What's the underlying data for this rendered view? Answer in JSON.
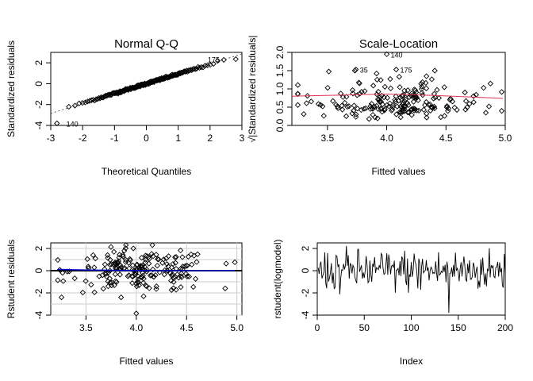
{
  "chart_data": [
    {
      "type": "scatter",
      "id": "qq",
      "title": "Normal Q-Q",
      "xlabel": "Theoretical Quantiles",
      "ylabel": "Standardized residuals",
      "xlim": [
        -3,
        3
      ],
      "ylim": [
        -4,
        3
      ],
      "xticks": [
        "-3",
        "-2",
        "-1",
        "0",
        "1",
        "2",
        "3"
      ],
      "yticks": [
        "-4",
        "-2",
        "0",
        "2"
      ],
      "n_points": 200,
      "reference_line": {
        "intercept": 0,
        "slope": 0.95,
        "style": "dotted",
        "color": "#555555"
      },
      "labeled_points": [
        {
          "label": "140",
          "x": -2.81,
          "y": -3.8
        },
        {
          "label": "175",
          "x": 2.6,
          "y": 2.35
        }
      ]
    },
    {
      "type": "scatter",
      "id": "scale_location",
      "title": "Scale-Location",
      "xlabel": "Fitted values",
      "ylabel": "√|Standardized residuals|",
      "xlim": [
        3.2,
        5.0
      ],
      "ylim": [
        0.0,
        2.0
      ],
      "xticks": [
        "3.5",
        "4.0",
        "4.5",
        "5.0"
      ],
      "yticks": [
        "0.0",
        "0.5",
        "1.0",
        "1.5",
        "2.0"
      ],
      "smoother_color": "#dd3355",
      "smoother": [
        [
          3.2,
          0.8
        ],
        [
          3.6,
          0.83
        ],
        [
          4.0,
          0.86
        ],
        [
          4.4,
          0.82
        ],
        [
          4.7,
          0.78
        ],
        [
          4.98,
          0.74
        ]
      ],
      "labeled_points": [
        {
          "label": "140",
          "x": 4.0,
          "y": 1.95
        },
        {
          "label": "35",
          "x": 3.74,
          "y": 1.53
        },
        {
          "label": "175",
          "x": 4.08,
          "y": 1.53
        }
      ]
    },
    {
      "type": "scatter",
      "id": "rstudent_fitted",
      "title": "",
      "xlabel": "Fitted values",
      "ylabel": "Rstudent residuals",
      "xlim": [
        3.15,
        5.05
      ],
      "ylim": [
        -4,
        2.5
      ],
      "xticks": [
        "3.5",
        "4.0",
        "4.5",
        "5.0"
      ],
      "yticks": [
        "-4",
        "-2",
        "0",
        "2"
      ],
      "grid": true,
      "zero_line_color": "#000000",
      "smooth_line_color": "#0000cc"
    },
    {
      "type": "line",
      "id": "rstudent_index",
      "title": "",
      "xlabel": "Index",
      "ylabel": "rstudent(logmodel)",
      "xlim": [
        0,
        200
      ],
      "ylim": [
        -4,
        2.5
      ],
      "xticks": [
        "0",
        "50",
        "100",
        "150",
        "200"
      ],
      "yticks": [
        "-4",
        "-2",
        "0",
        "2"
      ]
    }
  ]
}
